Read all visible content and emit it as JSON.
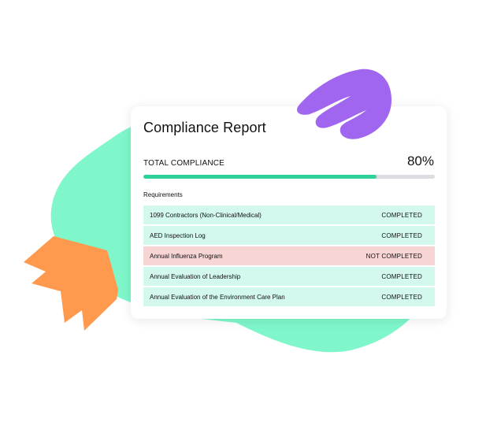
{
  "report": {
    "title": "Compliance Report",
    "total_label": "TOTAL COMPLIANCE",
    "total_value": "80%",
    "progress_fraction": 0.8,
    "requirements_label": "Requirements",
    "requirements": [
      {
        "name": "1099 Contractors (Non-Clinical/Medical)",
        "status": "COMPLETED",
        "state": "completed"
      },
      {
        "name": "AED Inspection Log",
        "status": "COMPLETED",
        "state": "completed"
      },
      {
        "name": "Annual Influenza Program",
        "status": "NOT COMPLETED",
        "state": "not-completed"
      },
      {
        "name": "Annual Evaluation of Leadership",
        "status": "COMPLETED",
        "state": "completed"
      },
      {
        "name": "Annual Evaluation of the Environment Care Plan",
        "status": "COMPLETED",
        "state": "completed"
      }
    ]
  },
  "colors": {
    "progress_fill": "#2fd19a",
    "progress_track": "#dcdde3",
    "row_completed": "#d3f8ed",
    "row_not_completed": "#f7d5d5",
    "blob_green": "#7ff7cb",
    "shape_purple": "#a066f0",
    "shape_orange": "#ff994d"
  },
  "decorations": {
    "green_blob": "green-blob-shape",
    "purple_shape": "purple-hand-shape",
    "orange_shape": "orange-arrow-shape"
  }
}
